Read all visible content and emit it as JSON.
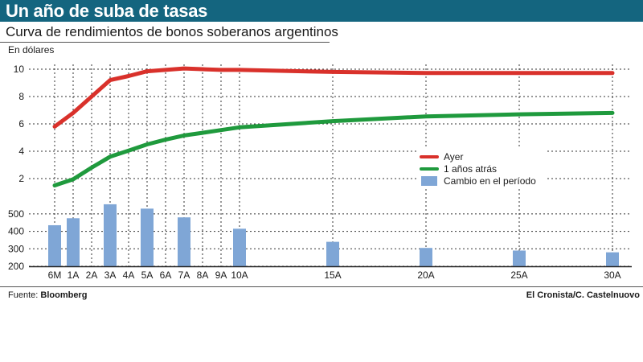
{
  "header": {
    "title": "Un año de suba de tasas",
    "subtitle": "Curva de rendimientos de bonos soberanos argentinos",
    "unit_label": "En dólares"
  },
  "footer": {
    "source_label": "Fuente:",
    "source_name": "Bloomberg",
    "credit": "El Cronista/C. Castelnuovo"
  },
  "colors": {
    "header_bg": "#14657f",
    "ayer": "#d9312b",
    "anio_atras": "#1f9a3d",
    "cambio": "#7fa6d6"
  },
  "chart_data": [
    {
      "type": "line",
      "title": "Curva de rendimientos de bonos soberanos argentinos",
      "ylabel": "En dólares",
      "ylim": [
        0,
        10
      ],
      "yticks": [
        2,
        4,
        6,
        8,
        10
      ],
      "grid": true,
      "legend_position": "right",
      "x_ticks": [
        "6M",
        "1A",
        "2A",
        "3A",
        "4A",
        "5A",
        "6A",
        "7A",
        "8A",
        "9A",
        "10A",
        "15A",
        "20A",
        "25A",
        "30A"
      ],
      "x_tick_years": [
        0.5,
        1,
        2,
        3,
        4,
        5,
        6,
        7,
        8,
        9,
        10,
        15,
        20,
        25,
        30
      ],
      "series": [
        {
          "name": "Ayer",
          "color": "#d9312b",
          "x": [
            0.5,
            1,
            2,
            3,
            4,
            5,
            6,
            7,
            8,
            9,
            10,
            15,
            20,
            25,
            30
          ],
          "y": [
            5.8,
            6.8,
            8.0,
            9.2,
            9.5,
            9.85,
            9.95,
            10.05,
            10.0,
            9.95,
            9.95,
            9.8,
            9.72,
            9.72,
            9.72
          ]
        },
        {
          "name": "1 años atrás",
          "color": "#1f9a3d",
          "x": [
            0.5,
            1,
            2,
            3,
            4,
            5,
            6,
            7,
            8,
            9,
            10,
            15,
            20,
            25,
            30
          ],
          "y": [
            1.5,
            1.95,
            2.8,
            3.6,
            4.05,
            4.5,
            4.85,
            5.15,
            5.35,
            5.55,
            5.75,
            6.2,
            6.55,
            6.7,
            6.8
          ]
        }
      ]
    },
    {
      "type": "bar",
      "ylim": [
        200,
        550
      ],
      "yticks": [
        200,
        300,
        400,
        500
      ],
      "grid": true,
      "series": [
        {
          "name": "Cambio en el período",
          "color": "#7fa6d6",
          "categories": [
            "6M",
            "1A",
            "3A",
            "5A",
            "7A",
            "10A",
            "15A",
            "20A",
            "25A",
            "30A"
          ],
          "x": [
            0.5,
            1,
            3,
            5,
            7,
            10,
            15,
            20,
            25,
            30
          ],
          "values": [
            435,
            475,
            555,
            530,
            480,
            415,
            340,
            305,
            290,
            280
          ]
        }
      ]
    }
  ]
}
